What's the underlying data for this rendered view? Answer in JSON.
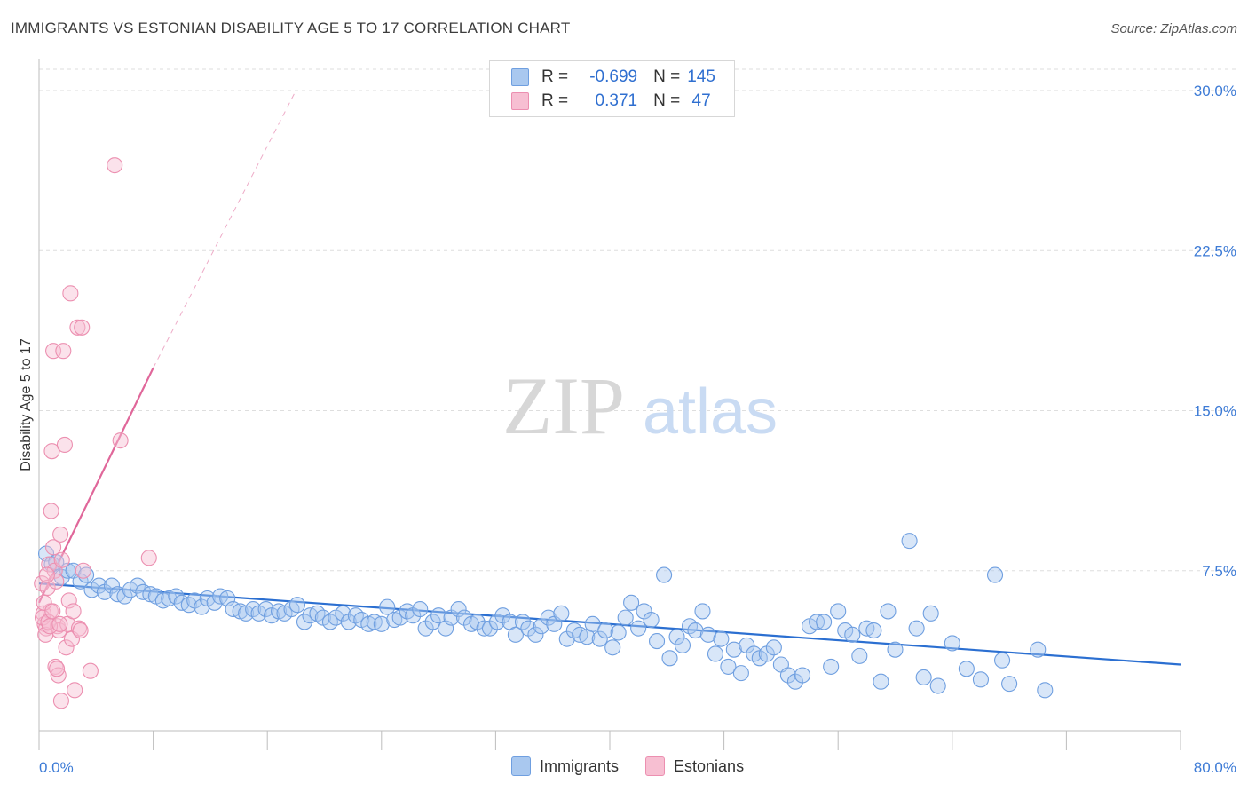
{
  "header": {
    "title": "IMMIGRANTS VS ESTONIAN DISABILITY AGE 5 TO 17 CORRELATION CHART",
    "source": "Source: ZipAtlas.com"
  },
  "watermark": {
    "zip": "ZIP",
    "atlas": "atlas"
  },
  "legend": {
    "rows": [
      {
        "r_label": "R =",
        "r_value": "-0.699",
        "n_label": "N =",
        "n_value": "145",
        "color": "#a9c8ef",
        "border": "#6f9fe0"
      },
      {
        "r_label": "R =",
        "r_value": " 0.371",
        "n_label": "N =",
        "n_value": " 47",
        "color": "#f7bfd2",
        "border": "#ec8fb0"
      }
    ]
  },
  "bottom_legend": {
    "items": [
      "Immigrants",
      "Estonians"
    ]
  },
  "colors": {
    "blue_fill": "#a9c8ef",
    "blue_stroke": "#6f9fe0",
    "blue_line": "#2b6fd1",
    "pink_fill": "#f7bfd2",
    "pink_stroke": "#ec8fb0",
    "pink_line": "#e0679a",
    "grid": "#dedede",
    "tick_text": "#3d7bd6"
  },
  "chart_data": {
    "type": "scatter",
    "title": "IMMIGRANTS VS ESTONIAN DISABILITY AGE 5 TO 17 CORRELATION CHART",
    "xlabel": "",
    "ylabel": "Disability Age 5 to 17",
    "xlim": [
      0,
      80
    ],
    "ylim": [
      0,
      31
    ],
    "x_tick_labels": [
      "0.0%",
      "80.0%"
    ],
    "y_ticks": [
      7.5,
      15.0,
      22.5,
      30.0
    ],
    "y_tick_labels": [
      "7.5%",
      "15.0%",
      "22.5%",
      "30.0%"
    ],
    "series": [
      {
        "name": "Immigrants",
        "trend": {
          "x0": 0,
          "y0": 6.9,
          "x1": 80,
          "y1": 3.1
        },
        "points": [
          [
            0.5,
            8.3
          ],
          [
            0.9,
            7.8
          ],
          [
            1.2,
            7.9
          ],
          [
            1.6,
            7.2
          ],
          [
            2.0,
            7.5
          ],
          [
            2.4,
            7.5
          ],
          [
            2.9,
            7.0
          ],
          [
            3.3,
            7.3
          ],
          [
            3.7,
            6.6
          ],
          [
            4.2,
            6.8
          ],
          [
            4.6,
            6.5
          ],
          [
            5.1,
            6.8
          ],
          [
            5.5,
            6.4
          ],
          [
            6.0,
            6.3
          ],
          [
            6.4,
            6.6
          ],
          [
            6.9,
            6.8
          ],
          [
            7.3,
            6.5
          ],
          [
            7.8,
            6.4
          ],
          [
            8.2,
            6.3
          ],
          [
            8.7,
            6.1
          ],
          [
            9.1,
            6.2
          ],
          [
            9.6,
            6.3
          ],
          [
            10.0,
            6.0
          ],
          [
            10.5,
            5.9
          ],
          [
            10.9,
            6.1
          ],
          [
            11.4,
            5.8
          ],
          [
            11.8,
            6.2
          ],
          [
            12.3,
            6.0
          ],
          [
            12.7,
            6.3
          ],
          [
            13.2,
            6.2
          ],
          [
            13.6,
            5.7
          ],
          [
            14.1,
            5.6
          ],
          [
            14.5,
            5.5
          ],
          [
            15.0,
            5.7
          ],
          [
            15.4,
            5.5
          ],
          [
            15.9,
            5.7
          ],
          [
            16.3,
            5.4
          ],
          [
            16.8,
            5.6
          ],
          [
            17.2,
            5.5
          ],
          [
            17.7,
            5.7
          ],
          [
            18.1,
            5.9
          ],
          [
            18.6,
            5.1
          ],
          [
            19.0,
            5.4
          ],
          [
            19.5,
            5.5
          ],
          [
            19.9,
            5.3
          ],
          [
            20.4,
            5.1
          ],
          [
            20.8,
            5.3
          ],
          [
            21.3,
            5.5
          ],
          [
            21.7,
            5.1
          ],
          [
            22.2,
            5.4
          ],
          [
            22.6,
            5.2
          ],
          [
            23.1,
            5.0
          ],
          [
            23.5,
            5.1
          ],
          [
            24.0,
            5.0
          ],
          [
            24.4,
            5.8
          ],
          [
            24.9,
            5.2
          ],
          [
            25.3,
            5.3
          ],
          [
            25.8,
            5.6
          ],
          [
            26.2,
            5.4
          ],
          [
            26.7,
            5.7
          ],
          [
            27.1,
            4.8
          ],
          [
            27.6,
            5.1
          ],
          [
            28.0,
            5.4
          ],
          [
            28.5,
            4.8
          ],
          [
            28.9,
            5.3
          ],
          [
            29.4,
            5.7
          ],
          [
            29.8,
            5.3
          ],
          [
            30.3,
            5.0
          ],
          [
            30.7,
            5.1
          ],
          [
            31.2,
            4.8
          ],
          [
            31.6,
            4.8
          ],
          [
            32.1,
            5.1
          ],
          [
            32.5,
            5.4
          ],
          [
            33.0,
            5.1
          ],
          [
            33.4,
            4.5
          ],
          [
            33.9,
            5.1
          ],
          [
            34.3,
            4.8
          ],
          [
            34.8,
            4.5
          ],
          [
            35.2,
            4.9
          ],
          [
            35.7,
            5.3
          ],
          [
            36.1,
            5.0
          ],
          [
            36.6,
            5.5
          ],
          [
            37.0,
            4.3
          ],
          [
            37.5,
            4.7
          ],
          [
            37.9,
            4.5
          ],
          [
            38.4,
            4.4
          ],
          [
            38.8,
            5.0
          ],
          [
            39.3,
            4.3
          ],
          [
            39.7,
            4.7
          ],
          [
            40.2,
            3.9
          ],
          [
            40.6,
            4.6
          ],
          [
            41.1,
            5.3
          ],
          [
            41.5,
            6.0
          ],
          [
            42.0,
            4.8
          ],
          [
            42.4,
            5.6
          ],
          [
            42.9,
            5.2
          ],
          [
            43.3,
            4.2
          ],
          [
            43.8,
            7.3
          ],
          [
            44.2,
            3.4
          ],
          [
            44.7,
            4.4
          ],
          [
            45.1,
            4.0
          ],
          [
            45.6,
            4.9
          ],
          [
            46.0,
            4.7
          ],
          [
            46.5,
            5.6
          ],
          [
            46.9,
            4.5
          ],
          [
            47.4,
            3.6
          ],
          [
            47.8,
            4.3
          ],
          [
            48.3,
            3.0
          ],
          [
            48.7,
            3.8
          ],
          [
            49.2,
            2.7
          ],
          [
            49.6,
            4.0
          ],
          [
            50.1,
            3.6
          ],
          [
            50.5,
            3.4
          ],
          [
            51.0,
            3.6
          ],
          [
            51.5,
            3.9
          ],
          [
            52.0,
            3.1
          ],
          [
            52.5,
            2.6
          ],
          [
            53.0,
            2.3
          ],
          [
            53.5,
            2.6
          ],
          [
            54.0,
            4.9
          ],
          [
            54.5,
            5.1
          ],
          [
            55.0,
            5.1
          ],
          [
            55.5,
            3.0
          ],
          [
            56.0,
            5.6
          ],
          [
            56.5,
            4.7
          ],
          [
            57.0,
            4.5
          ],
          [
            57.5,
            3.5
          ],
          [
            58.0,
            4.8
          ],
          [
            58.5,
            4.7
          ],
          [
            59.0,
            2.3
          ],
          [
            59.5,
            5.6
          ],
          [
            60.0,
            3.8
          ],
          [
            61.0,
            8.9
          ],
          [
            61.5,
            4.8
          ],
          [
            62.0,
            2.5
          ],
          [
            62.5,
            5.5
          ],
          [
            63.0,
            2.1
          ],
          [
            64.0,
            4.1
          ],
          [
            65.0,
            2.9
          ],
          [
            66.0,
            2.4
          ],
          [
            67.0,
            7.3
          ],
          [
            67.5,
            3.3
          ],
          [
            68.0,
            2.2
          ],
          [
            70.0,
            3.8
          ],
          [
            70.5,
            1.9
          ]
        ]
      },
      {
        "name": "Estonians",
        "trend": {
          "x0": 0,
          "y0": 6.0,
          "x1": 8,
          "y1": 17.0,
          "extended_to": [
            18,
            30.0
          ]
        },
        "points": [
          [
            0.2,
            6.9
          ],
          [
            0.3,
            5.5
          ],
          [
            0.4,
            5.0
          ],
          [
            0.5,
            4.8
          ],
          [
            0.6,
            6.7
          ],
          [
            0.7,
            7.8
          ],
          [
            0.8,
            5.6
          ],
          [
            0.9,
            13.1
          ],
          [
            1.0,
            17.8
          ],
          [
            1.0,
            8.6
          ],
          [
            1.1,
            7.5
          ],
          [
            1.2,
            7.0
          ],
          [
            1.3,
            4.9
          ],
          [
            1.4,
            4.7
          ],
          [
            1.5,
            9.2
          ],
          [
            1.6,
            8.0
          ],
          [
            1.7,
            17.8
          ],
          [
            1.8,
            13.4
          ],
          [
            1.9,
            3.9
          ],
          [
            2.0,
            5.0
          ],
          [
            2.1,
            6.1
          ],
          [
            2.2,
            20.5
          ],
          [
            2.3,
            4.3
          ],
          [
            2.4,
            5.6
          ],
          [
            2.5,
            1.9
          ],
          [
            2.7,
            18.9
          ],
          [
            2.8,
            4.8
          ],
          [
            2.9,
            4.7
          ],
          [
            3.0,
            18.9
          ],
          [
            3.1,
            7.5
          ],
          [
            3.6,
            2.8
          ],
          [
            5.3,
            26.5
          ],
          [
            5.7,
            13.6
          ],
          [
            7.7,
            8.1
          ],
          [
            0.25,
            5.3
          ],
          [
            0.45,
            4.5
          ],
          [
            0.65,
            5.1
          ],
          [
            0.85,
            10.3
          ],
          [
            1.15,
            3.0
          ],
          [
            1.35,
            2.6
          ],
          [
            1.55,
            1.4
          ],
          [
            1.25,
            2.9
          ],
          [
            0.35,
            6.0
          ],
          [
            0.55,
            7.3
          ],
          [
            0.75,
            4.9
          ],
          [
            0.95,
            5.6
          ],
          [
            1.45,
            5.0
          ]
        ]
      }
    ]
  }
}
